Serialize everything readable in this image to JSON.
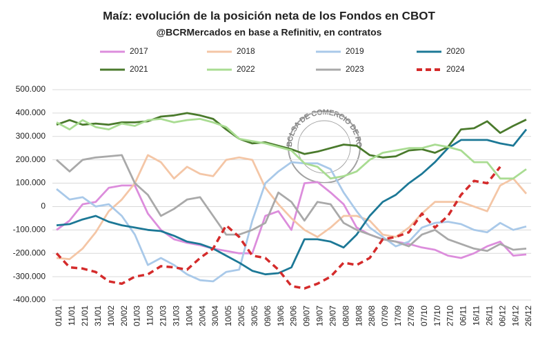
{
  "chart_data": {
    "type": "line",
    "title": "Maíz: evolución de la posición neta de los Fondos en CBOT",
    "subtitle": "@BCRMercados en base a Refinitiv, en contratos",
    "watermark": "BOLSA DE COMERCIO DE ROSARIO",
    "categories": [
      "01/01",
      "11/01",
      "21/01",
      "31/01",
      "10/02",
      "20/02",
      "01/03",
      "11/03",
      "21/03",
      "31/03",
      "10/04",
      "20/04",
      "30/04",
      "10/05",
      "20/05",
      "30/05",
      "09/06",
      "19/06",
      "29/06",
      "09/07",
      "19/07",
      "29/07",
      "08/08",
      "18/08",
      "28/08",
      "07/09",
      "17/09",
      "27/09",
      "07/10",
      "17/10",
      "27/10",
      "06/11",
      "16/11",
      "26/11",
      "06/12",
      "16/12",
      "26/12"
    ],
    "ylim": [
      -400000,
      500000
    ],
    "yticks": [
      {
        "value": -400000,
        "label": "-400.000"
      },
      {
        "value": -300000,
        "label": "-300.000"
      },
      {
        "value": -200000,
        "label": "-200.000"
      },
      {
        "value": -100000,
        "label": "-100.000"
      },
      0,
      {
        "value": 100000,
        "label": "100.000"
      },
      {
        "value": 200000,
        "label": "200.000"
      },
      {
        "value": 300000,
        "label": "300.000"
      },
      {
        "value": 400000,
        "label": "400.000"
      },
      {
        "value": 500000,
        "label": "500.000"
      }
    ],
    "grid": true,
    "series": [
      {
        "name": "2017",
        "color": "#dc8ddc",
        "values": [
          -100000,
          -60000,
          10000,
          20000,
          80000,
          90000,
          90000,
          -30000,
          -100000,
          -140000,
          -155000,
          -165000,
          -180000,
          -190000,
          -200000,
          -200000,
          -40000,
          -20000,
          -100000,
          100000,
          105000,
          60000,
          10000,
          -90000,
          -120000,
          -140000,
          -150000,
          -160000,
          -175000,
          -185000,
          -210000,
          -220000,
          -200000,
          -170000,
          -150000,
          -210000,
          -205000
        ]
      },
      {
        "name": "2018",
        "color": "#f4c6a6",
        "values": [
          -220000,
          -225000,
          -180000,
          -110000,
          -20000,
          30000,
          100000,
          220000,
          190000,
          120000,
          170000,
          140000,
          130000,
          200000,
          210000,
          200000,
          80000,
          10000,
          -50000,
          -100000,
          -130000,
          -90000,
          -40000,
          -40000,
          -60000,
          -120000,
          -130000,
          -90000,
          -30000,
          20000,
          20000,
          20000,
          0,
          -20000,
          90000,
          120000,
          55000
        ]
      },
      {
        "name": "2019",
        "color": "#a9c9e9",
        "values": [
          75000,
          30000,
          40000,
          0,
          10000,
          -40000,
          -120000,
          -250000,
          -220000,
          -250000,
          -290000,
          -315000,
          -320000,
          -280000,
          -270000,
          -60000,
          100000,
          150000,
          190000,
          185000,
          185000,
          160000,
          60000,
          -20000,
          -90000,
          -130000,
          -170000,
          -150000,
          -90000,
          -70000,
          -65000,
          -75000,
          -100000,
          -110000,
          -70000,
          -100000,
          -85000
        ]
      },
      {
        "name": "2020",
        "color": "#1c7896",
        "values": [
          -80000,
          -75000,
          -55000,
          -40000,
          -65000,
          -80000,
          -90000,
          -100000,
          -105000,
          -125000,
          -150000,
          -160000,
          -180000,
          -210000,
          -240000,
          -275000,
          -290000,
          -285000,
          -260000,
          -140000,
          -140000,
          -150000,
          -175000,
          -120000,
          -40000,
          20000,
          50000,
          100000,
          140000,
          190000,
          250000,
          285000,
          285000,
          285000,
          270000,
          260000,
          330000
        ]
      },
      {
        "name": "2021",
        "color": "#4a7a2c",
        "values": [
          350000,
          370000,
          350000,
          355000,
          350000,
          360000,
          360000,
          365000,
          385000,
          390000,
          400000,
          390000,
          375000,
          330000,
          290000,
          270000,
          275000,
          260000,
          245000,
          225000,
          235000,
          250000,
          265000,
          260000,
          220000,
          210000,
          215000,
          240000,
          245000,
          230000,
          255000,
          330000,
          335000,
          365000,
          315000,
          345000,
          372000
        ]
      },
      {
        "name": "2022",
        "color": "#a9dc92",
        "values": [
          360000,
          330000,
          370000,
          340000,
          330000,
          355000,
          345000,
          370000,
          375000,
          360000,
          370000,
          375000,
          360000,
          340000,
          290000,
          280000,
          270000,
          255000,
          240000,
          185000,
          170000,
          120000,
          130000,
          150000,
          200000,
          230000,
          240000,
          250000,
          250000,
          265000,
          255000,
          240000,
          190000,
          190000,
          120000,
          120000,
          160000
        ]
      },
      {
        "name": "2023",
        "color": "#a9a9a9",
        "values": [
          200000,
          150000,
          200000,
          210000,
          215000,
          220000,
          100000,
          50000,
          -40000,
          -10000,
          30000,
          40000,
          -40000,
          -120000,
          -120000,
          -100000,
          -70000,
          60000,
          20000,
          -60000,
          20000,
          10000,
          -70000,
          -100000,
          -120000,
          -140000,
          -150000,
          -170000,
          -120000,
          -100000,
          -140000,
          -160000,
          -180000,
          -190000,
          -160000,
          -185000,
          -180000
        ]
      },
      {
        "name": "2024",
        "color": "#d42b2b",
        "dashed": true,
        "values": [
          -200000,
          -260000,
          -265000,
          -280000,
          -320000,
          -330000,
          -300000,
          -290000,
          -255000,
          -260000,
          -270000,
          -220000,
          -180000,
          -80000,
          -130000,
          -210000,
          -220000,
          -270000,
          -340000,
          -350000,
          -330000,
          -300000,
          -240000,
          -250000,
          -220000,
          -140000,
          -130000,
          -110000,
          -30000,
          -90000,
          -40000,
          50000,
          110000,
          100000,
          170000,
          null,
          null
        ]
      }
    ]
  }
}
